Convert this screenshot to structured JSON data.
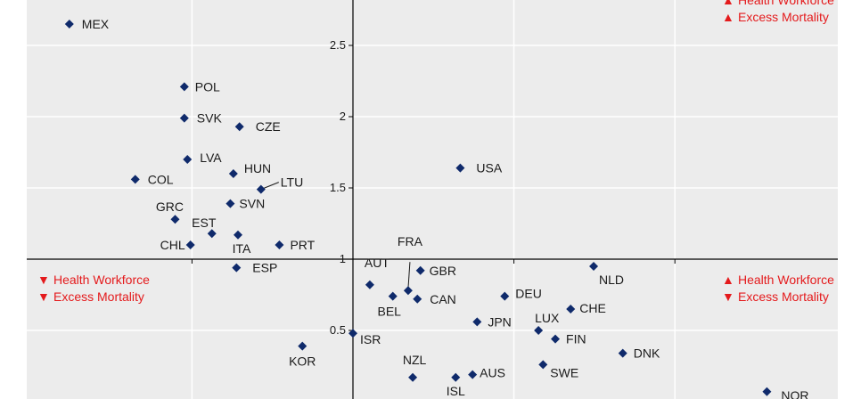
{
  "chart_data": {
    "type": "scatter",
    "colors": {
      "point": "#0f2a6b",
      "annotation": "#e41a1c",
      "plot_background": "#ececec",
      "grid": "#ffffff",
      "axis": "#000000"
    },
    "ylim": [
      0,
      2.8
    ],
    "xlim": [
      -2.3,
      3.2
    ],
    "yticks": [
      "0.5",
      "1",
      "1.5",
      "2",
      "2.5"
    ],
    "y_tick_values": [
      0.5,
      1,
      1.5,
      2,
      2.5
    ],
    "grid": true,
    "points": [
      {
        "label": "MEX",
        "x": -1.85,
        "y": 2.65
      },
      {
        "label": "POL",
        "x": -1.1,
        "y": 2.21
      },
      {
        "label": "SVK",
        "x": -1.1,
        "y": 1.99
      },
      {
        "label": "CZE",
        "x": -0.74,
        "y": 1.93
      },
      {
        "label": "LVA",
        "x": -1.08,
        "y": 1.7
      },
      {
        "label": "HUN",
        "x": -0.78,
        "y": 1.6
      },
      {
        "label": "LTU",
        "x": -0.6,
        "y": 1.49
      },
      {
        "label": "COL",
        "x": -1.42,
        "y": 1.56
      },
      {
        "label": "SVN",
        "x": -0.8,
        "y": 1.39
      },
      {
        "label": "GRC",
        "x": -1.16,
        "y": 1.28
      },
      {
        "label": "EST",
        "x": -0.92,
        "y": 1.18
      },
      {
        "label": "ITA",
        "x": -0.75,
        "y": 1.17
      },
      {
        "label": "CHL",
        "x": -1.06,
        "y": 1.1
      },
      {
        "label": "PRT",
        "x": -0.48,
        "y": 1.1
      },
      {
        "label": "ESP",
        "x": -0.76,
        "y": 0.94
      },
      {
        "label": "USA",
        "x": 0.7,
        "y": 1.64
      },
      {
        "label": "FRA",
        "x": 0.36,
        "y": 0.78
      },
      {
        "label": "GBR",
        "x": 0.44,
        "y": 0.92
      },
      {
        "label": "AUT",
        "x": 0.11,
        "y": 0.82
      },
      {
        "label": "BEL",
        "x": 0.26,
        "y": 0.74
      },
      {
        "label": "CAN",
        "x": 0.42,
        "y": 0.72
      },
      {
        "label": "DEU",
        "x": 0.99,
        "y": 0.74
      },
      {
        "label": "NLD",
        "x": 1.57,
        "y": 0.95
      },
      {
        "label": "CHE",
        "x": 1.42,
        "y": 0.65
      },
      {
        "label": "JPN",
        "x": 0.81,
        "y": 0.56
      },
      {
        "label": "LUX",
        "x": 1.21,
        "y": 0.5
      },
      {
        "label": "FIN",
        "x": 1.32,
        "y": 0.44
      },
      {
        "label": "DNK",
        "x": 1.76,
        "y": 0.34
      },
      {
        "label": "ISR",
        "x": 0.0,
        "y": 0.48
      },
      {
        "label": "KOR",
        "x": -0.33,
        "y": 0.39
      },
      {
        "label": "SWE",
        "x": 1.24,
        "y": 0.26
      },
      {
        "label": "NZL",
        "x": 0.39,
        "y": 0.17
      },
      {
        "label": "AUS",
        "x": 0.78,
        "y": 0.19
      },
      {
        "label": "ISL",
        "x": 0.67,
        "y": 0.17
      },
      {
        "label": "NOR",
        "x": 2.7,
        "y": 0.07
      }
    ],
    "quadrant_annotations": [
      {
        "position": "top-right",
        "lines": [
          {
            "symbol": "▲",
            "text": "Health Workforce"
          },
          {
            "symbol": "▲",
            "text": "Excess Mortality"
          }
        ]
      },
      {
        "position": "middle-left",
        "lines": [
          {
            "symbol": "▼",
            "text": "Health Workforce"
          },
          {
            "symbol": "▼",
            "text": "Excess Mortality"
          }
        ]
      },
      {
        "position": "middle-right",
        "lines": [
          {
            "symbol": "▲",
            "text": "Health Workforce"
          },
          {
            "symbol": "▼",
            "text": "Excess Mortality"
          }
        ]
      }
    ]
  }
}
